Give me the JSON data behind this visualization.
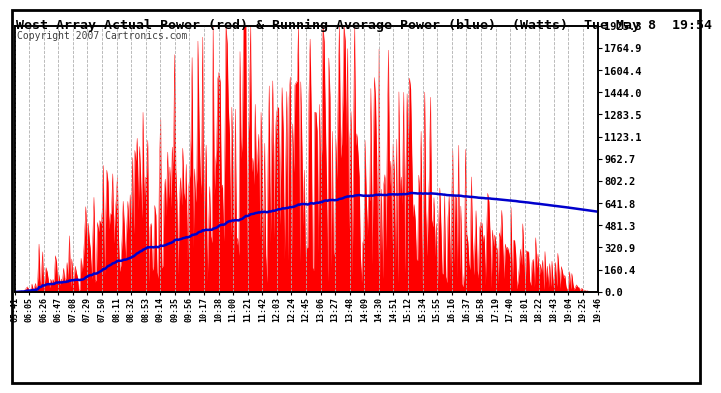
{
  "title": "West Array Actual Power (red) & Running Average Power (blue)  (Watts)  Tue May 8  19:54",
  "copyright": "Copyright 2007 Cartronics.com",
  "yticks": [
    0.0,
    160.4,
    320.9,
    481.3,
    641.8,
    802.2,
    962.7,
    1123.1,
    1283.5,
    1444.0,
    1604.4,
    1764.9,
    1925.3
  ],
  "ymax": 1925.3,
  "xtick_labels": [
    "05:41",
    "06:05",
    "06:26",
    "06:47",
    "07:08",
    "07:29",
    "07:50",
    "08:11",
    "08:32",
    "08:53",
    "09:14",
    "09:35",
    "09:56",
    "10:17",
    "10:38",
    "11:00",
    "11:21",
    "11:42",
    "12:03",
    "12:24",
    "12:45",
    "13:06",
    "13:27",
    "13:48",
    "14:09",
    "14:30",
    "14:51",
    "15:12",
    "15:34",
    "15:55",
    "16:16",
    "16:37",
    "16:58",
    "17:19",
    "17:40",
    "18:01",
    "18:22",
    "18:43",
    "19:04",
    "19:25",
    "19:46"
  ],
  "bg_color": "#ffffff",
  "plot_bg_color": "#ffffff",
  "grid_color": "#b0b0b0",
  "bar_color": "#ff0000",
  "line_color": "#0000cc",
  "title_color": "#000000",
  "border_color": "#000000",
  "title_fontsize": 9.5,
  "copyright_fontsize": 7.0
}
